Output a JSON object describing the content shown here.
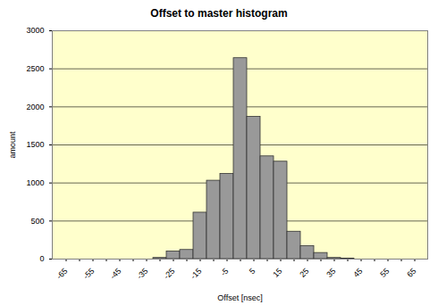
{
  "chart_data": {
    "type": "bar",
    "title": "Offset to master histogram",
    "x_label": "Offset [nsec]",
    "y_label": "amount",
    "categories": [
      "-65",
      null,
      "-55",
      null,
      "-45",
      null,
      "-35",
      null,
      "-25",
      null,
      "-15",
      null,
      "-5",
      null,
      "5",
      null,
      "15",
      null,
      "25",
      null,
      "35",
      null,
      "45",
      null,
      "55",
      null,
      "65"
    ],
    "values": [
      0,
      0,
      0,
      0,
      0,
      0,
      0,
      15,
      100,
      120,
      610,
      1030,
      1120,
      2640,
      1870,
      1350,
      1280,
      360,
      170,
      80,
      15,
      5,
      0,
      0,
      0,
      0,
      0
    ],
    "color": "#999999",
    "ylim": [
      0,
      3000
    ],
    "yticks": [
      0,
      500,
      1000,
      1500,
      2000,
      2500,
      3000
    ],
    "grid": true
  }
}
